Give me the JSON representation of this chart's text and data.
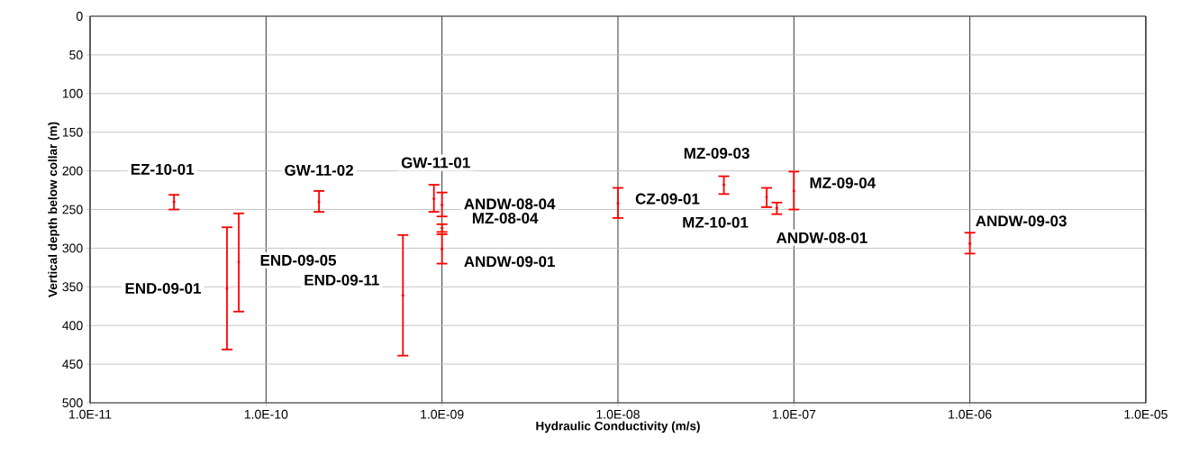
{
  "chart_data": {
    "type": "scatter",
    "xlabel": "Hydraulic Conductivity (m/s)",
    "ylabel": "Vertical depth below collar (m)",
    "log": "x",
    "grid": true,
    "xlim": [
      1e-11,
      1e-05
    ],
    "xticks": [
      {
        "value": 1e-11,
        "label": "1.0E-11"
      },
      {
        "value": 1e-10,
        "label": "1.0E-10"
      },
      {
        "value": 1e-09,
        "label": "1.0E-09"
      },
      {
        "value": 1e-08,
        "label": "1.0E-08"
      },
      {
        "value": 1e-07,
        "label": "1.0E-07"
      },
      {
        "value": 1e-06,
        "label": "1.0E-06"
      },
      {
        "value": 1e-05,
        "label": "1.0E-05"
      }
    ],
    "ylim": [
      500,
      0
    ],
    "yticks": [
      0,
      50,
      100,
      150,
      200,
      250,
      300,
      350,
      400,
      450,
      500
    ],
    "series": [
      {
        "name": "EZ-10-01",
        "color": "#ff0000",
        "x": [
          3e-11
        ],
        "values": [
          240
        ],
        "errors": [
          [
            231,
            250
          ]
        ]
      },
      {
        "name": "END-09-01",
        "color": "#ff0000",
        "x": [
          6e-11
        ],
        "values": [
          352
        ],
        "errors": [
          [
            273,
            431
          ]
        ]
      },
      {
        "name": "END-09-05",
        "color": "#ff0000",
        "x": [
          7e-11
        ],
        "values": [
          318
        ],
        "errors": [
          [
            255,
            382
          ]
        ]
      },
      {
        "name": "GW-11-02",
        "color": "#ff0000",
        "x": [
          2e-10
        ],
        "values": [
          240
        ],
        "errors": [
          [
            226,
            253
          ]
        ]
      },
      {
        "name": "END-09-11",
        "color": "#ff0000",
        "x": [
          6e-10
        ],
        "values": [
          361
        ],
        "errors": [
          [
            283,
            439
          ]
        ]
      },
      {
        "name": "GW-11-01",
        "color": "#ff0000",
        "x": [
          9e-10
        ],
        "values": [
          236
        ],
        "errors": [
          [
            218,
            253
          ]
        ]
      },
      {
        "name": "ANDW-08-04",
        "color": "#ff0000",
        "x": [
          1e-09
        ],
        "values": [
          244
        ],
        "errors": [
          [
            228,
            259
          ]
        ]
      },
      {
        "name": "MZ-08-04",
        "color": "#ff0000",
        "x": [
          1e-09
        ],
        "values": [
          274
        ],
        "errors": [
          [
            269,
            279
          ]
        ]
      },
      {
        "name": "ANDW-09-01",
        "color": "#ff0000",
        "x": [
          1e-09
        ],
        "values": [
          301
        ],
        "errors": [
          [
            282,
            320
          ]
        ]
      },
      {
        "name": "CZ-09-01",
        "color": "#ff0000",
        "x": [
          1e-08
        ],
        "values": [
          242
        ],
        "errors": [
          [
            222,
            261
          ]
        ]
      },
      {
        "name": "MZ-09-03",
        "color": "#ff0000",
        "x": [
          4e-08
        ],
        "values": [
          218
        ],
        "errors": [
          [
            207,
            230
          ]
        ]
      },
      {
        "name": "MZ-10-01",
        "color": "#ff0000",
        "x": [
          7e-08
        ],
        "values": [
          234
        ],
        "errors": [
          [
            222,
            247
          ]
        ]
      },
      {
        "name": "ANDW-08-01",
        "color": "#ff0000",
        "x": [
          8e-08
        ],
        "values": [
          248
        ],
        "errors": [
          [
            241,
            256
          ]
        ]
      },
      {
        "name": "MZ-09-04",
        "color": "#ff0000",
        "x": [
          1e-07
        ],
        "values": [
          226
        ],
        "errors": [
          [
            201,
            250
          ]
        ]
      },
      {
        "name": "ANDW-09-03",
        "color": "#ff0000",
        "x": [
          1e-06
        ],
        "values": [
          294
        ],
        "errors": [
          [
            280,
            307
          ]
        ]
      }
    ]
  }
}
